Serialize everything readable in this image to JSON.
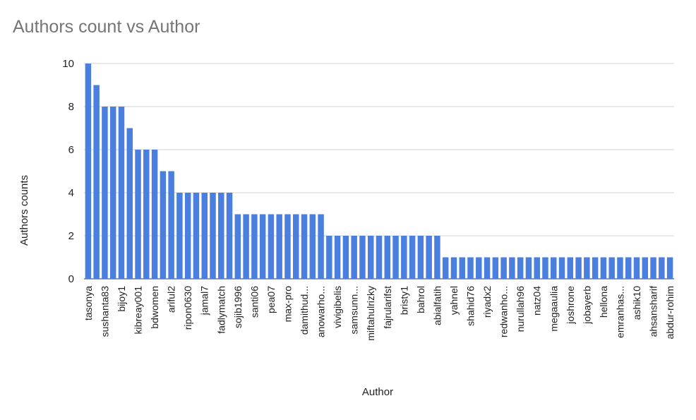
{
  "chart_data": {
    "type": "bar",
    "title": "Authors count vs Author",
    "x_label": "Author",
    "y_label": "Authors counts",
    "categories": [
      "tasonya",
      null,
      "sushanta83",
      null,
      "bijoy1",
      null,
      "kibreay001",
      null,
      "bdwomen",
      null,
      "ariful2",
      null,
      "ripon0630",
      null,
      "jamal7",
      null,
      "fadlymatch",
      null,
      "sojib1996",
      null,
      "santi06",
      null,
      "pea07",
      null,
      "max-pro",
      null,
      "damithud...",
      null,
      "anowarho...",
      null,
      "vivigibelis",
      null,
      "samsunn...",
      null,
      "miftahulrizky",
      null,
      "fajrularifst",
      null,
      "bristy1",
      null,
      "bahrol",
      null,
      "abialfatih",
      null,
      "yahnel",
      null,
      "shahid76",
      null,
      "riyadx2",
      null,
      "redwanho...",
      null,
      "nurullah96",
      null,
      "natz04",
      null,
      "megaaulia",
      null,
      "joshrone",
      null,
      "jobayerb",
      null,
      "hellona",
      null,
      "emranhas...",
      null,
      "ashik10",
      null,
      "ahsansharif",
      null,
      "abdur-rohim"
    ],
    "values": [
      10,
      9,
      8,
      8,
      8,
      7,
      6,
      6,
      6,
      5,
      5,
      4,
      4,
      4,
      4,
      4,
      4,
      4,
      3,
      3,
      3,
      3,
      3,
      3,
      3,
      3,
      3,
      3,
      3,
      2,
      2,
      2,
      2,
      2,
      2,
      2,
      2,
      2,
      2,
      2,
      2,
      2,
      2,
      1,
      1,
      1,
      1,
      1,
      1,
      1,
      1,
      1,
      1,
      1,
      1,
      1,
      1,
      1,
      1,
      1,
      1,
      1,
      1,
      1,
      1,
      1,
      1,
      1,
      1,
      1,
      1
    ],
    "color": "#4a7fe0",
    "ylim": [
      0,
      10
    ],
    "yticks": [
      0,
      2,
      4,
      6,
      8,
      10
    ],
    "grid": true
  }
}
